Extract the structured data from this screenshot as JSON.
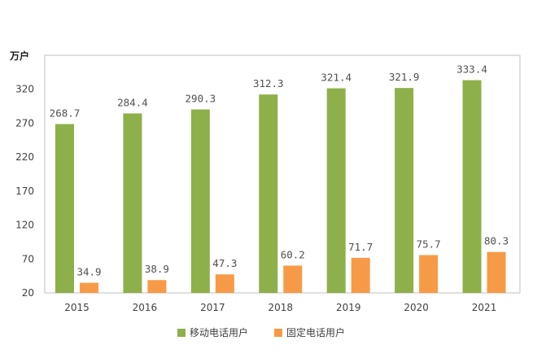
{
  "chart_data": {
    "type": "bar",
    "title": "",
    "xlabel": "",
    "ylabel": "万户",
    "categories": [
      "2015",
      "2016",
      "2017",
      "2018",
      "2019",
      "2020",
      "2021"
    ],
    "series": [
      {
        "name": "移动电话用户",
        "color": "#8db04a",
        "values": [
          268.7,
          284.4,
          290.3,
          312.3,
          321.4,
          321.9,
          333.4
        ],
        "labels": [
          "268.7",
          "284.4",
          "290.3",
          "312.3",
          "321.4",
          "321.9",
          "333.4"
        ]
      },
      {
        "name": "固定电话用户",
        "color": "#f79a47",
        "values": [
          34.9,
          38.9,
          47.3,
          60.2,
          71.7,
          75.7,
          80.3
        ],
        "labels": [
          "34.9",
          "38.9",
          "47.3",
          "60.2",
          "71.7",
          "75.7",
          "80.3"
        ]
      }
    ],
    "ylim": [
      20,
      370
    ],
    "yticks": [
      20,
      70,
      120,
      170,
      220,
      270,
      320
    ],
    "ytick_labels": [
      "20",
      "70",
      "120",
      "170",
      "220",
      "270",
      "320"
    ],
    "grid": false,
    "legend_position": "bottom-center"
  }
}
